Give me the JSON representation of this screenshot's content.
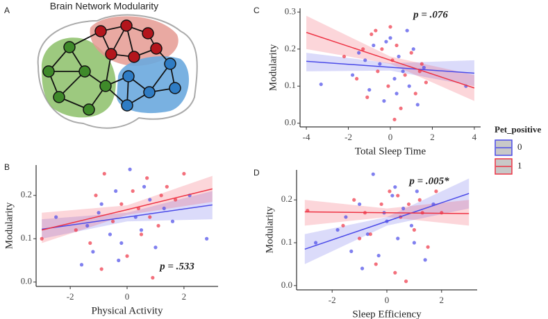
{
  "panel_a": {
    "label": "A",
    "title": "Brain Network Modularity"
  },
  "chart_data": [
    {
      "type": "scatter",
      "panel": "C",
      "xlabel": "Total Sleep Time",
      "ylabel": "Modularity",
      "annotation": "p = .076",
      "legend_title": "Pet_positive",
      "xlim": [
        -4.3,
        4.3
      ],
      "ylim": [
        -0.01,
        0.31
      ],
      "xticks": [
        -4,
        -2,
        0,
        2,
        4
      ],
      "yticks": [
        {
          "value": 0,
          "label": "0.0"
        },
        {
          "value": 0.1,
          "label": "0.1"
        },
        {
          "value": 0.2,
          "label": "0.2"
        },
        {
          "value": 0.3,
          "label": "0.3"
        }
      ],
      "series": [
        {
          "name": "0",
          "color": "#4a4ae8",
          "x": [
            -3.3,
            -1.8,
            -1.5,
            -1.0,
            -0.8,
            -0.5,
            -0.3,
            0,
            0.2,
            0.4,
            0.6,
            0.9,
            1.1,
            1.3,
            1.6,
            -0.2,
            0.3,
            -1.2,
            0.8,
            3.6
          ],
          "y": [
            0.105,
            0.13,
            0.19,
            0.09,
            0.21,
            0.16,
            0.06,
            0.23,
            0.12,
            0.18,
            0.14,
            0.1,
            0.2,
            0.05,
            0.15,
            0.22,
            0.08,
            0.17,
            0.25,
            0.1
          ],
          "fit": {
            "x": [
              -4,
              0,
              4
            ],
            "y": [
              0.167,
              0.151,
              0.135
            ],
            "lower": [
              0.14,
              0.142,
              0.1
            ],
            "upper": [
              0.19,
              0.162,
              0.17
            ]
          }
        },
        {
          "name": "1",
          "color": "#ee3344",
          "x": [
            -2.2,
            -1.6,
            -1.3,
            -0.9,
            -0.6,
            -0.4,
            -0.1,
            0.1,
            0.3,
            0.5,
            0.7,
            1.0,
            1.2,
            1.5,
            1.7,
            -0.7,
            0.2,
            1.4,
            -1.1,
            0.0
          ],
          "y": [
            0.18,
            0.12,
            0.2,
            0.24,
            0.14,
            0.2,
            0.1,
            0.17,
            0.21,
            0.04,
            0.13,
            0.19,
            0.08,
            0.16,
            0.11,
            0.25,
            0.01,
            0.14,
            0.07,
            0.26
          ],
          "fit": {
            "x": [
              -4,
              0,
              4
            ],
            "y": [
              0.245,
              0.17,
              0.095
            ],
            "lower": [
              0.2,
              0.16,
              0.06
            ],
            "upper": [
              0.29,
              0.18,
              0.13
            ]
          }
        }
      ]
    },
    {
      "type": "scatter",
      "panel": "B",
      "xlabel": "Physical Activity",
      "ylabel": "Modularity",
      "annotation": "p = .533",
      "xlim": [
        -3.2,
        3.2
      ],
      "ylim": [
        -0.01,
        0.27
      ],
      "xticks": [
        -2,
        0,
        2
      ],
      "yticks": [
        {
          "value": 0,
          "label": "0.0"
        },
        {
          "value": 0.1,
          "label": "0.1"
        },
        {
          "value": 0.2,
          "label": "0.2"
        }
      ],
      "series": [
        {
          "name": "0",
          "color": "#4a4ae8",
          "x": [
            -2.5,
            -1.6,
            -1.4,
            -1.2,
            -0.9,
            -0.6,
            -0.4,
            -0.2,
            0.1,
            0.3,
            0.5,
            0.8,
            1.0,
            1.3,
            1.6,
            2.2,
            2.8,
            -1.0,
            0.6,
            -0.3
          ],
          "y": [
            0.15,
            0.04,
            0.13,
            0.07,
            0.18,
            0.11,
            0.21,
            0.09,
            0.26,
            0.15,
            0.12,
            0.19,
            0.08,
            0.17,
            0.14,
            0.2,
            0.1,
            0.16,
            0.22,
            0.05
          ],
          "fit": {
            "x": [
              -3,
              0,
              3
            ],
            "y": [
              0.122,
              0.15,
              0.178
            ],
            "lower": [
              0.1,
              0.14,
              0.145
            ],
            "upper": [
              0.145,
              0.16,
              0.21
            ]
          }
        },
        {
          "name": "1",
          "color": "#ee3344",
          "x": [
            -3.0,
            -1.8,
            -1.3,
            -1.1,
            -0.8,
            -0.5,
            -0.2,
            0.0,
            0.2,
            0.4,
            0.7,
            0.9,
            1.1,
            1.4,
            1.7,
            2.0,
            -0.9,
            0.5,
            0.8,
            1.2
          ],
          "y": [
            0.1,
            0.12,
            0.09,
            0.2,
            0.25,
            0.14,
            0.18,
            0.06,
            0.21,
            0.17,
            0.24,
            0.01,
            0.13,
            0.22,
            0.19,
            0.25,
            0.03,
            0.11,
            0.15,
            0.2
          ],
          "fit": {
            "x": [
              -3,
              0,
              3
            ],
            "y": [
              0.12,
              0.167,
              0.215
            ],
            "lower": [
              0.09,
              0.155,
              0.185
            ],
            "upper": [
              0.16,
              0.177,
              0.245
            ]
          }
        }
      ]
    },
    {
      "type": "scatter",
      "panel": "D",
      "xlabel": "Sleep Efficiency",
      "ylabel": "Modularity",
      "annotation": "p = .005*",
      "xlim": [
        -3.3,
        3.3
      ],
      "ylim": [
        -0.01,
        0.27
      ],
      "xticks": [
        -2,
        0,
        2
      ],
      "yticks": [
        {
          "value": 0,
          "label": "0.0"
        },
        {
          "value": 0.1,
          "label": "0.1"
        },
        {
          "value": 0.2,
          "label": "0.2"
        }
      ],
      "series": [
        {
          "name": "0",
          "color": "#4a4ae8",
          "x": [
            -2.6,
            -1.8,
            -1.5,
            -1.3,
            -1.0,
            -0.7,
            -0.5,
            -0.3,
            0.0,
            0.2,
            0.4,
            0.6,
            0.9,
            1.1,
            1.4,
            1.7,
            -0.9,
            0.3,
            -0.1,
            1.0
          ],
          "y": [
            0.1,
            0.13,
            0.16,
            0.08,
            0.19,
            0.12,
            0.26,
            0.07,
            0.15,
            0.21,
            0.11,
            0.18,
            0.14,
            0.22,
            0.06,
            0.19,
            0.04,
            0.23,
            0.17,
            0.1
          ],
          "fit": {
            "x": [
              -3,
              0,
              3
            ],
            "y": [
              0.085,
              0.15,
              0.215
            ],
            "lower": [
              0.05,
              0.14,
              0.18
            ],
            "upper": [
              0.12,
              0.16,
              0.25
            ]
          }
        },
        {
          "name": "1",
          "color": "#ee3344",
          "x": [
            -2.9,
            -1.6,
            -1.2,
            -0.8,
            -0.6,
            -0.2,
            0.1,
            0.3,
            0.5,
            0.8,
            1.0,
            1.2,
            1.5,
            1.8,
            2.0,
            -0.4,
            0.7,
            1.3,
            -1.0,
            0.4
          ],
          "y": [
            0.175,
            0.14,
            0.2,
            0.17,
            0.12,
            0.19,
            0.22,
            0.03,
            0.16,
            0.19,
            0.13,
            0.2,
            0.09,
            0.22,
            0.17,
            0.05,
            0.01,
            0.17,
            0.11,
            0.21
          ],
          "fit": {
            "x": [
              -3,
              0,
              3
            ],
            "y": [
              0.172,
              0.17,
              0.168
            ],
            "lower": [
              0.14,
              0.16,
              0.14
            ],
            "upper": [
              0.2,
              0.18,
              0.2
            ]
          }
        }
      ]
    }
  ]
}
